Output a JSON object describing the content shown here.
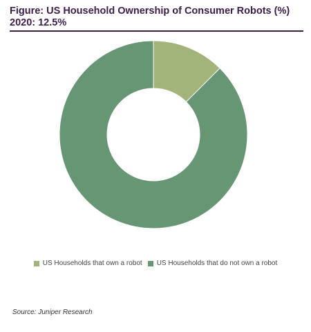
{
  "figure": {
    "title": "Figure: US Household Ownership of Consumer Robots (%) 2020: 12.5%",
    "source": "Source: Juniper Research"
  },
  "colors": {
    "own": "#a3b47a",
    "not_own": "#679675",
    "title": "#3b1d4a"
  },
  "chart_data": {
    "type": "pie",
    "style": "donut",
    "title": "Figure: US Household Ownership of Consumer Robots (%) 2020: 12.5%",
    "categories": [
      "US Households  that  own  a  robot",
      "US Households  that  do  not  own  a robot"
    ],
    "values": [
      12.5,
      87.5
    ],
    "unit": "%",
    "legend_placement": "bottom",
    "grid": false
  }
}
